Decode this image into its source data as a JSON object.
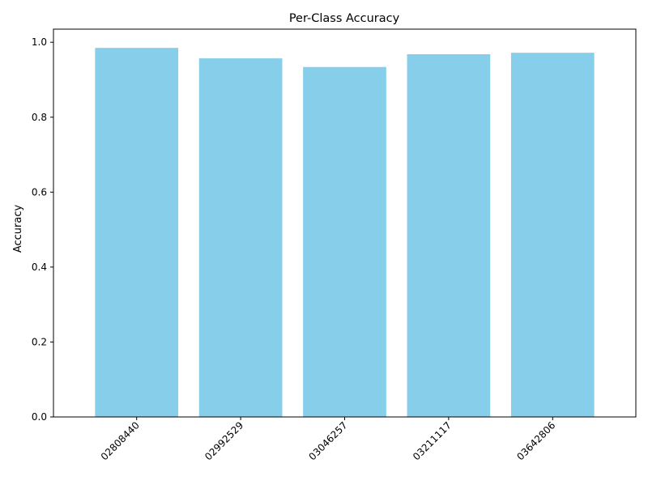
{
  "chart_data": {
    "type": "bar",
    "title": "Per-Class Accuracy",
    "xlabel": "",
    "ylabel": "Accuracy",
    "categories": [
      "02808440",
      "02992529",
      "03046257",
      "03211117",
      "03642806"
    ],
    "values": [
      0.985,
      0.957,
      0.934,
      0.968,
      0.972
    ],
    "ylim": [
      0,
      1.035
    ],
    "yticks": [
      0.0,
      0.2,
      0.4,
      0.6,
      0.8,
      1.0
    ],
    "ytick_labels": [
      "0.0",
      "0.2",
      "0.4",
      "0.6",
      "0.8",
      "1.0"
    ],
    "bar_color": "#87CEEB",
    "grid": false,
    "legend": "none",
    "x_tick_rotation_deg": 45
  }
}
